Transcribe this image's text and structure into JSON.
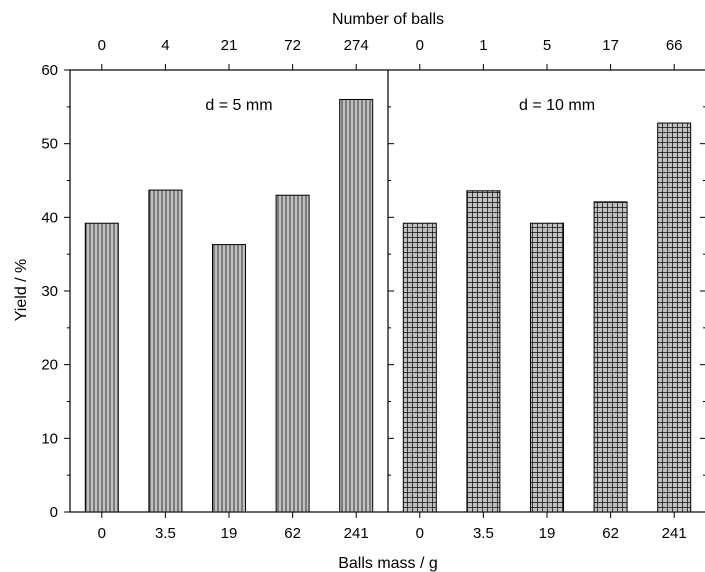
{
  "chart_data": [
    {
      "type": "bar",
      "panel_label": "d = 5 mm",
      "categories": [
        "0",
        "3.5",
        "19",
        "62",
        "241"
      ],
      "top_categories": [
        "0",
        "4",
        "21",
        "72",
        "274"
      ],
      "values": [
        39.2,
        43.7,
        36.3,
        43.0,
        56.0
      ],
      "pattern": "vertical-lines"
    },
    {
      "type": "bar",
      "panel_label": "d = 10 mm",
      "categories": [
        "0",
        "3.5",
        "19",
        "62",
        "241"
      ],
      "top_categories": [
        "0",
        "1",
        "5",
        "17",
        "66"
      ],
      "values": [
        39.2,
        43.6,
        39.2,
        42.1,
        52.8
      ],
      "pattern": "grid"
    }
  ],
  "axes": {
    "xlabel": "Balls mass / g",
    "x2label": "Number of balls",
    "ylabel": "Yield / %",
    "ylim": [
      0,
      60
    ],
    "yticks": [
      "0",
      "10",
      "20",
      "30",
      "40",
      "50",
      "60"
    ]
  },
  "colors": {
    "bar_fill": "#c0c0c0",
    "bar_pattern": "#000000",
    "axis": "#000000"
  }
}
